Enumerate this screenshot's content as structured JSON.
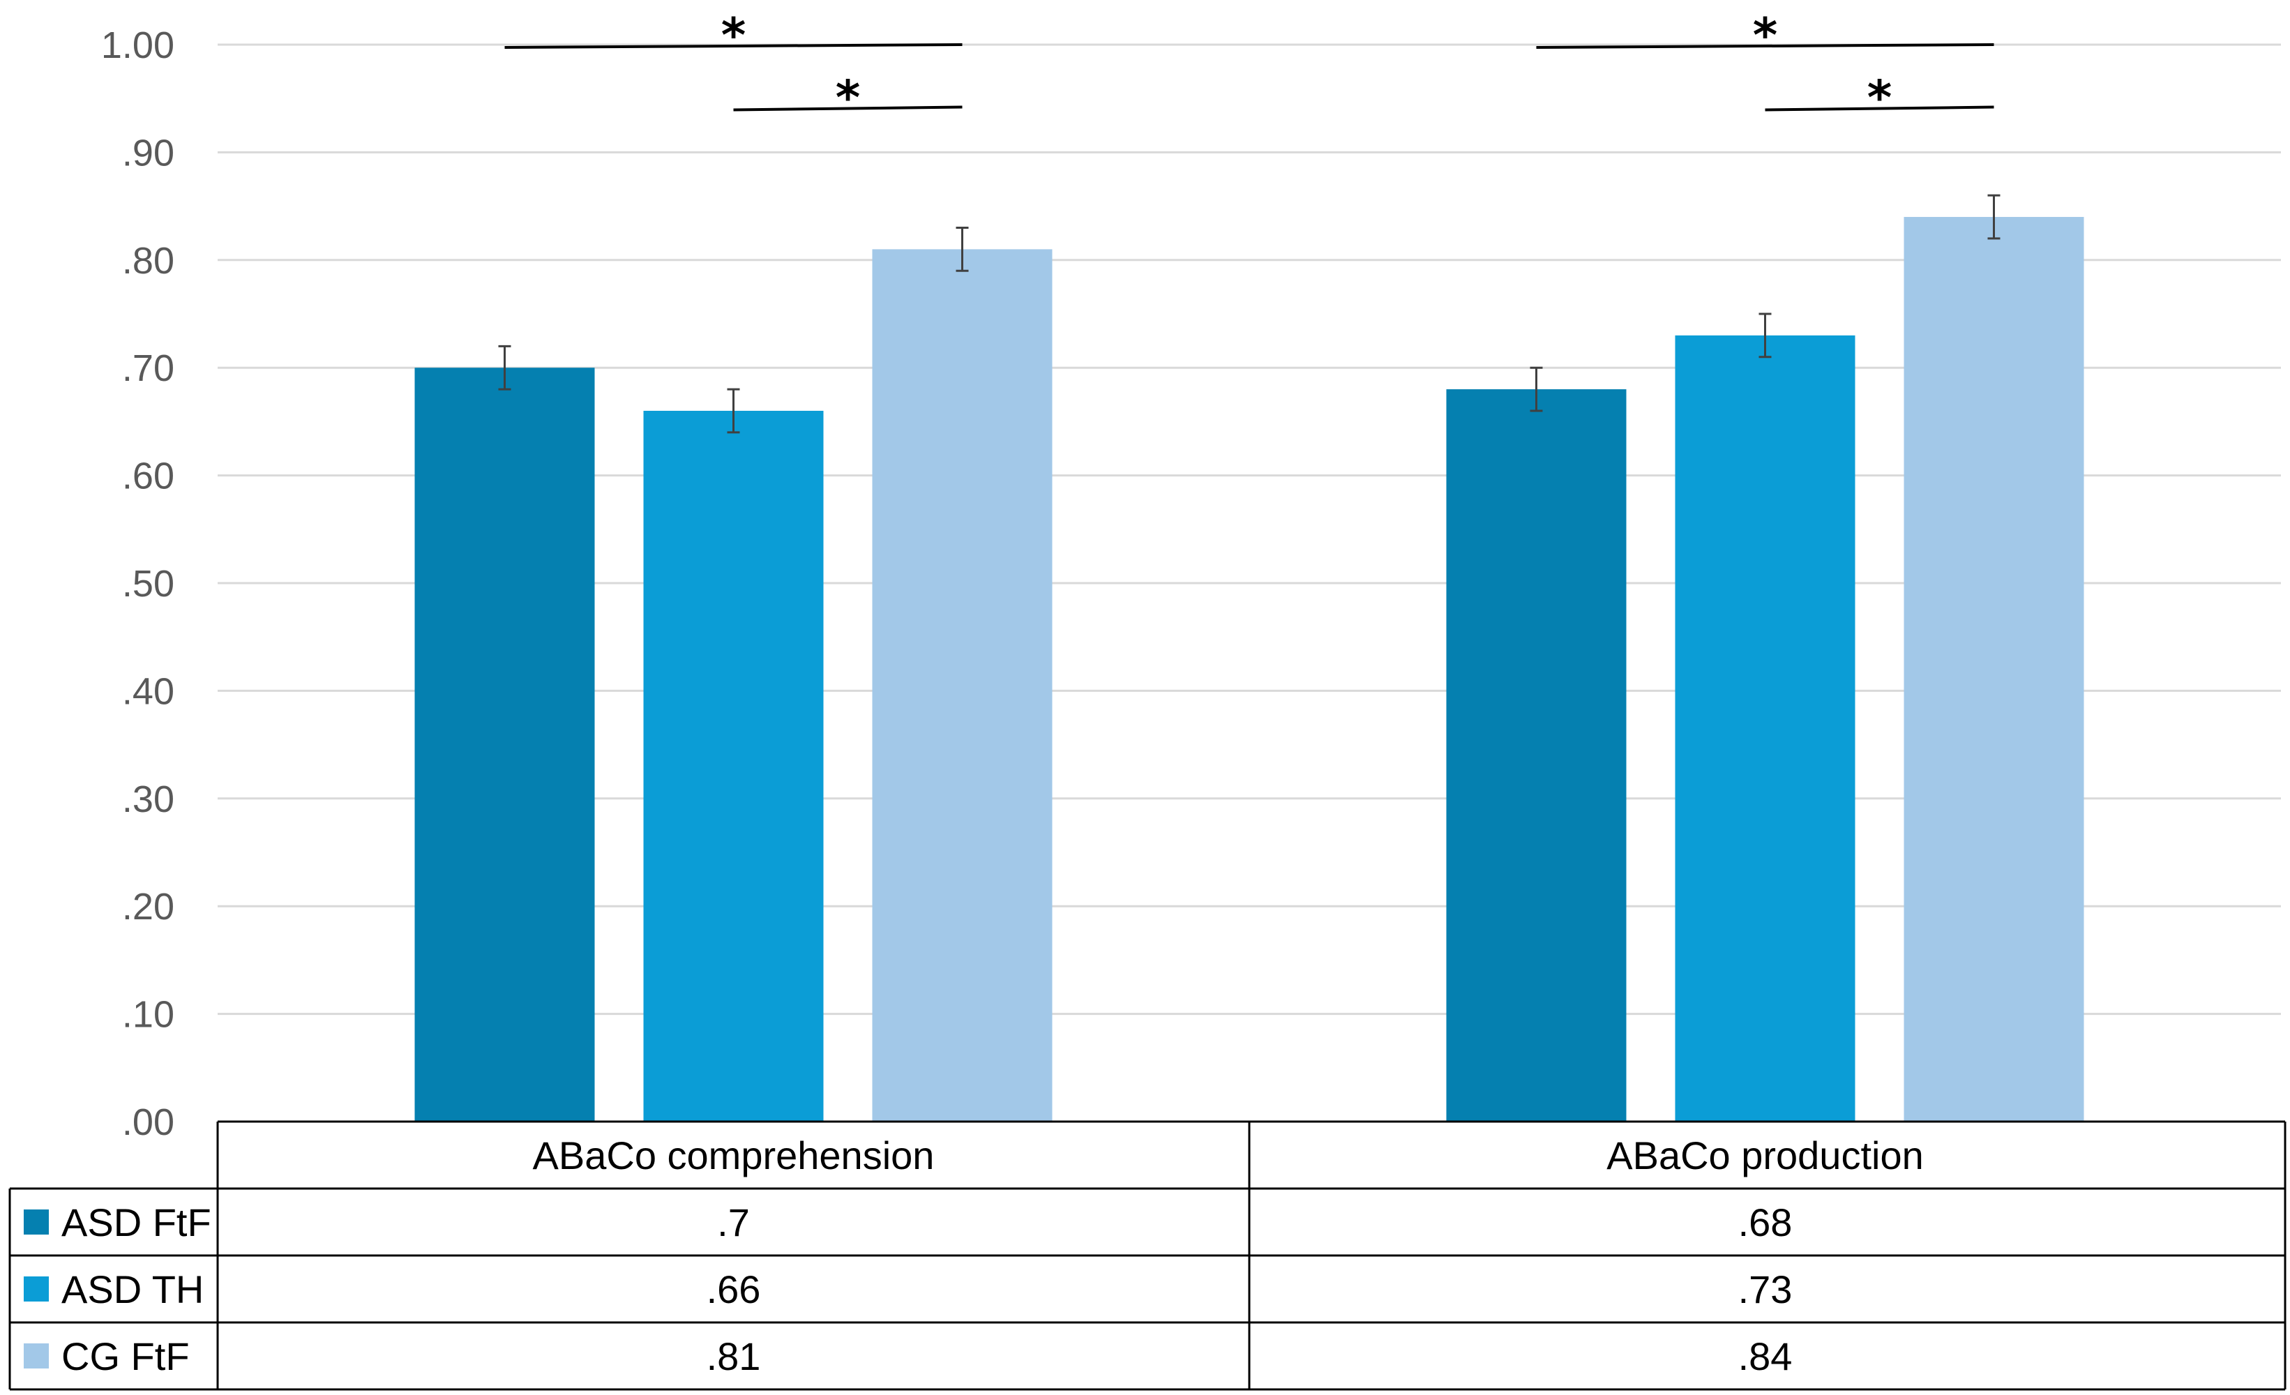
{
  "chart_data": {
    "type": "bar",
    "title": "",
    "xlabel": "",
    "ylabel": "",
    "ylim": [
      0,
      1
    ],
    "grid": true,
    "categories": [
      "ABaCo comprehension",
      "ABaCo production"
    ],
    "series": [
      {
        "name": "ASD FtF",
        "values": [
          0.7,
          0.68
        ],
        "errors": [
          0.02,
          0.02
        ],
        "color": "#0580B0",
        "table_values": [
          ".7",
          ".68"
        ]
      },
      {
        "name": "ASD TH",
        "values": [
          0.66,
          0.73
        ],
        "errors": [
          0.02,
          0.02
        ],
        "color": "#0B9DD6",
        "table_values": [
          ".66",
          ".73"
        ]
      },
      {
        "name": "CG FtF",
        "values": [
          0.81,
          0.84
        ],
        "errors": [
          0.02,
          0.02
        ],
        "color": "#A2C8E8",
        "table_values": [
          ".81",
          ".84"
        ]
      }
    ],
    "yticks": [
      {
        "value": 0.0,
        "label": ".00"
      },
      {
        "value": 0.1,
        "label": ".10"
      },
      {
        "value": 0.2,
        "label": ".20"
      },
      {
        "value": 0.3,
        "label": ".30"
      },
      {
        "value": 0.4,
        "label": ".40"
      },
      {
        "value": 0.5,
        "label": ".50"
      },
      {
        "value": 0.6,
        "label": ".60"
      },
      {
        "value": 0.7,
        "label": ".70"
      },
      {
        "value": 0.8,
        "label": ".80"
      },
      {
        "value": 0.9,
        "label": ".90"
      },
      {
        "value": 1.0,
        "label": "1.00"
      }
    ],
    "significance": [
      {
        "category": 0,
        "from_series": 0,
        "to_series": 2,
        "level": 1.0,
        "label": "*"
      },
      {
        "category": 0,
        "from_series": 1,
        "to_series": 2,
        "level": 0.942,
        "label": "*"
      },
      {
        "category": 1,
        "from_series": 0,
        "to_series": 2,
        "level": 1.0,
        "label": "*"
      },
      {
        "category": 1,
        "from_series": 1,
        "to_series": 2,
        "level": 0.942,
        "label": "*"
      }
    ]
  }
}
